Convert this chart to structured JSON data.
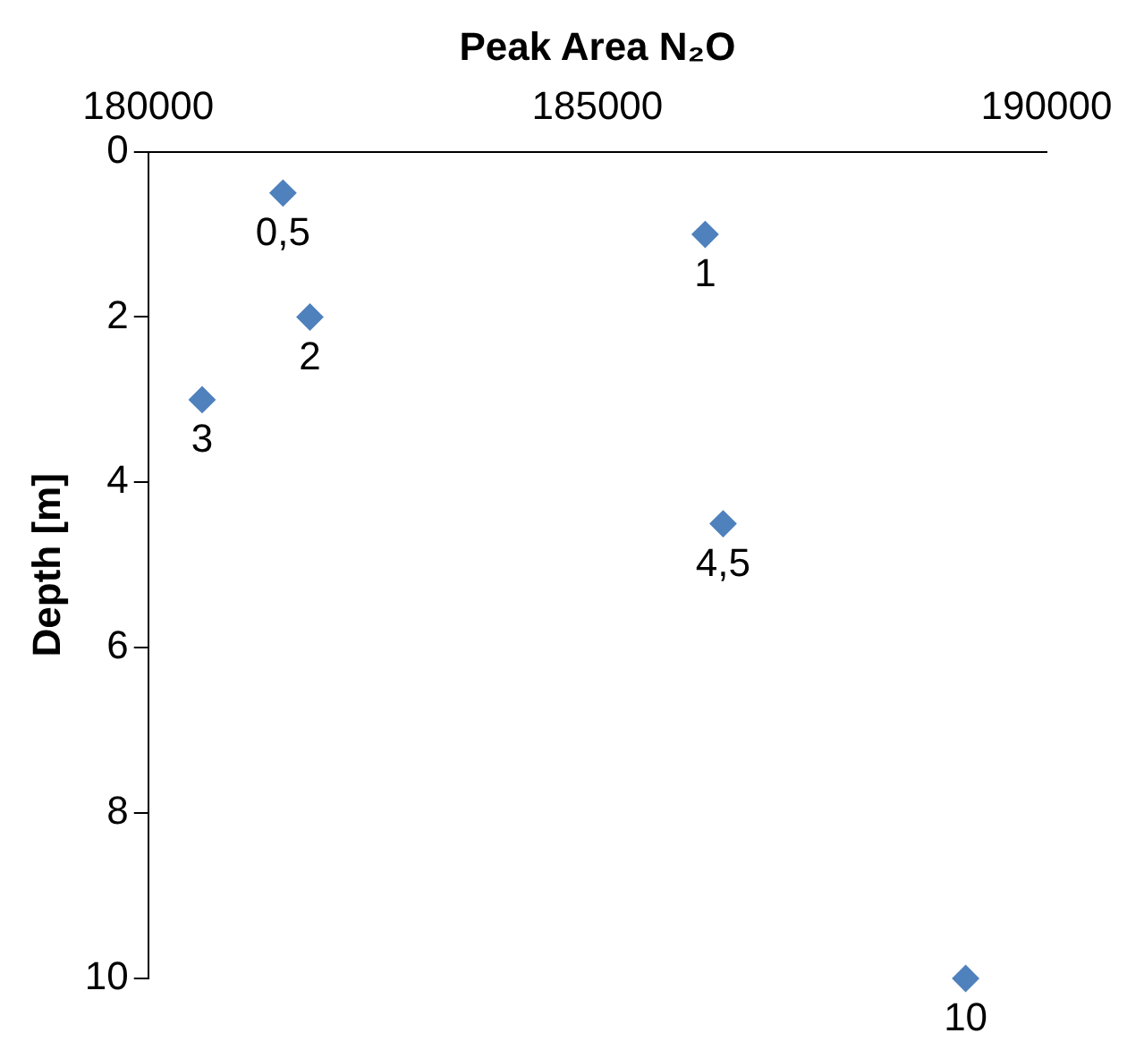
{
  "chart_data": {
    "type": "scatter",
    "xlabel": "Peak Area N₂O",
    "ylabel": "Depth [m]",
    "x": [
      181500,
      186200,
      181800,
      180600,
      186400,
      189100
    ],
    "values": [
      0.5,
      1,
      2,
      3,
      4.5,
      10
    ],
    "value_labels": [
      "0,5",
      "1",
      "2",
      "3",
      "4,5",
      "10"
    ],
    "color": "#4f81bd",
    "marker": "diamond",
    "xlim": [
      180000,
      190000
    ],
    "xticks": [
      180000,
      185000,
      190000
    ],
    "ylim": [
      10,
      0
    ],
    "yticks": [
      0,
      2,
      4,
      6,
      8,
      10
    ],
    "grid": false,
    "legend": false
  }
}
